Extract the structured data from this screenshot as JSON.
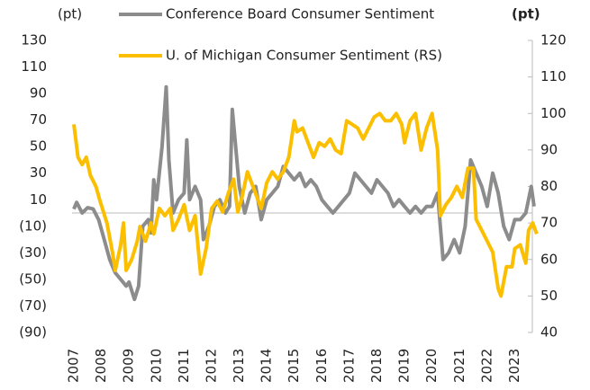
{
  "chart_data": {
    "type": "line",
    "left_axis_label": "(pt)",
    "right_axis_label": "(pt)",
    "xlim": [
      2007,
      2023.9
    ],
    "xticks": [
      2007,
      2008,
      2009,
      2010,
      2011,
      2012,
      2013,
      2014,
      2015,
      2016,
      2017,
      2018,
      2019,
      2020,
      2021,
      2022,
      2023
    ],
    "ylim": [
      -90,
      130
    ],
    "yticks": [
      {
        "value": -90,
        "label": "(90)"
      },
      {
        "value": -70,
        "label": "(70)"
      },
      {
        "value": -50,
        "label": "(50)"
      },
      {
        "value": -30,
        "label": "(30)"
      },
      {
        "value": -10,
        "label": "(10)"
      },
      10,
      30,
      50,
      70,
      90,
      110,
      130
    ],
    "y2lim": [
      40,
      120
    ],
    "y2ticks": [
      40,
      50,
      60,
      70,
      80,
      90,
      100,
      110,
      120
    ],
    "series": [
      {
        "name": "Conference Board Consumer Sentiment",
        "color": "#8c8c8c",
        "axis": "y",
        "x": [
          2007.0,
          2007.1,
          2007.3,
          2007.5,
          2007.7,
          2007.9,
          2008.1,
          2008.3,
          2008.5,
          2008.7,
          2008.9,
          2009.0,
          2009.2,
          2009.35,
          2009.5,
          2009.7,
          2009.8,
          2009.9,
          2010.0,
          2010.2,
          2010.3,
          2010.35,
          2010.45,
          2010.6,
          2010.8,
          2011.0,
          2011.1,
          2011.2,
          2011.4,
          2011.6,
          2011.7,
          2011.9,
          2012.1,
          2012.3,
          2012.5,
          2012.65,
          2012.75,
          2013.0,
          2013.2,
          2013.4,
          2013.6,
          2013.8,
          2014.0,
          2014.2,
          2014.4,
          2014.6,
          2014.8,
          2015.0,
          2015.2,
          2015.4,
          2015.6,
          2015.8,
          2016.0,
          2016.2,
          2016.4,
          2016.6,
          2016.8,
          2017.0,
          2017.2,
          2017.4,
          2017.6,
          2017.8,
          2018.0,
          2018.2,
          2018.4,
          2018.6,
          2018.8,
          2019.0,
          2019.2,
          2019.4,
          2019.6,
          2019.8,
          2020.0,
          2020.2,
          2020.4,
          2020.6,
          2020.8,
          2021.0,
          2021.2,
          2021.4,
          2021.6,
          2021.8,
          2022.0,
          2022.2,
          2022.4,
          2022.6,
          2022.8,
          2023.0,
          2023.2,
          2023.4,
          2023.6,
          2023.7
        ],
        "values": [
          3,
          8,
          0,
          4,
          3,
          -5,
          -20,
          -35,
          -45,
          -50,
          -55,
          -52,
          -65,
          -55,
          -10,
          -5,
          -15,
          25,
          10,
          50,
          80,
          95,
          40,
          0,
          10,
          15,
          55,
          10,
          20,
          10,
          -20,
          -10,
          5,
          10,
          0,
          5,
          78,
          20,
          0,
          15,
          20,
          -5,
          10,
          15,
          20,
          35,
          30,
          25,
          30,
          20,
          25,
          20,
          10,
          5,
          0,
          5,
          10,
          15,
          30,
          25,
          20,
          15,
          25,
          20,
          15,
          5,
          10,
          5,
          0,
          5,
          0,
          5,
          5,
          15,
          -35,
          -30,
          -20,
          -30,
          -10,
          40,
          30,
          20,
          5,
          30,
          15,
          -10,
          -20,
          -5,
          -5,
          0,
          20,
          5
        ]
      },
      {
        "name": "U. of Michigan Consumer Sentiment  (RS)",
        "color": "#fbbf00",
        "axis": "y2",
        "x": [
          2007.0,
          2007.15,
          2007.3,
          2007.45,
          2007.6,
          2007.8,
          2007.95,
          2008.2,
          2008.4,
          2008.5,
          2008.7,
          2008.8,
          2008.9,
          2009.1,
          2009.3,
          2009.4,
          2009.6,
          2009.8,
          2009.9,
          2010.1,
          2010.3,
          2010.5,
          2010.6,
          2010.8,
          2011.0,
          2011.2,
          2011.4,
          2011.5,
          2011.6,
          2011.8,
          2012.0,
          2012.2,
          2012.4,
          2012.6,
          2012.8,
          2012.95,
          2013.1,
          2013.3,
          2013.4,
          2013.6,
          2013.8,
          2014.0,
          2014.2,
          2014.4,
          2014.6,
          2014.8,
          2015.0,
          2015.1,
          2015.3,
          2015.5,
          2015.7,
          2015.9,
          2016.1,
          2016.3,
          2016.5,
          2016.7,
          2016.9,
          2017.1,
          2017.3,
          2017.5,
          2017.7,
          2017.9,
          2018.1,
          2018.3,
          2018.5,
          2018.7,
          2018.9,
          2019.0,
          2019.2,
          2019.4,
          2019.6,
          2019.8,
          2020.0,
          2020.2,
          2020.3,
          2020.5,
          2020.7,
          2020.9,
          2021.1,
          2021.3,
          2021.5,
          2021.6,
          2021.8,
          2022.0,
          2022.2,
          2022.4,
          2022.5,
          2022.7,
          2022.9,
          2023.0,
          2023.2,
          2023.4,
          2023.5,
          2023.65,
          2023.8
        ],
        "values": [
          97,
          88,
          86,
          88,
          83,
          80,
          76,
          70,
          62,
          57,
          64,
          70,
          57,
          60,
          65,
          69,
          65,
          70,
          67,
          74,
          72,
          74,
          68,
          71,
          75,
          68,
          72,
          64,
          56,
          63,
          74,
          76,
          73,
          78,
          82,
          73,
          77,
          84,
          82,
          78,
          74,
          81,
          84,
          82,
          84,
          88,
          98,
          95,
          96,
          92,
          88,
          92,
          91,
          93,
          90,
          89,
          98,
          97,
          96,
          93,
          96,
          99,
          100,
          98,
          98,
          100,
          97,
          92,
          98,
          100,
          90,
          96,
          100,
          90,
          72,
          75,
          77,
          80,
          77,
          85,
          85,
          71,
          68,
          65,
          62,
          52,
          50,
          58,
          58,
          63,
          64,
          59,
          68,
          70,
          67
        ]
      }
    ]
  }
}
